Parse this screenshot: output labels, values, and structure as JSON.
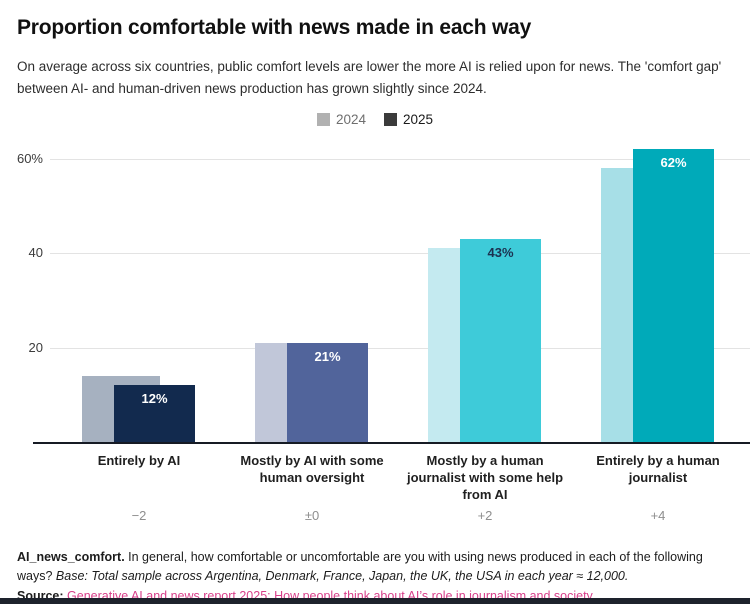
{
  "page": {
    "title": "Proportion comfortable with news made in each way",
    "subtitle": "On average across six countries, public comfort levels are lower the more AI is relied upon for news. The 'comfort gap' between AI- and human-driven news production has grown slightly since 2024."
  },
  "legend": {
    "items": [
      {
        "label": "2024",
        "swatch_color": "#b1b1b1",
        "text_color": "#6f6f6f"
      },
      {
        "label": "2025",
        "swatch_color": "#3b3b3b",
        "text_color": "#1a1a1a"
      }
    ]
  },
  "chart_data": {
    "type": "bar",
    "title": "Proportion comfortable with news made in each way",
    "categories": [
      "Entirely by AI",
      "Mostly by AI with some human oversight",
      "Mostly by a human journalist with some help from AI",
      "Entirely by a human journalist"
    ],
    "series": [
      {
        "name": "2024",
        "values": [
          14,
          21,
          41,
          58
        ],
        "colors": [
          "#a6b1c0",
          "#c1c7d9",
          "#c4eaf0",
          "#a7dfe7"
        ]
      },
      {
        "name": "2025",
        "values": [
          12,
          21,
          43,
          62
        ],
        "colors": [
          "#122a4e",
          "#51649b",
          "#3ecbd9",
          "#00aab9"
        ],
        "value_labels": [
          "12%",
          "21%",
          "43%",
          "62%"
        ],
        "value_label_colors": [
          "#ffffff",
          "#ffffff",
          "#1c3150",
          "#ffffff"
        ]
      }
    ],
    "change_labels": [
      "−2",
      "±0",
      "+2",
      "+4"
    ],
    "y_ticks": [
      {
        "value": 20,
        "label": "20"
      },
      {
        "value": 40,
        "label": "40"
      },
      {
        "value": 60,
        "label": "60%"
      }
    ],
    "ylim": [
      0,
      66
    ],
    "grid": true,
    "legend_position": "top-center",
    "xlabel": "",
    "ylabel": ""
  },
  "footnote": {
    "variable_bold": "AI_news_comfort.",
    "question": " In general, how comfortable or uncomfortable are you with using news produced in each of the following ways? ",
    "base_italic": "Base: Total sample across Argentina, Denmark, France, Japan, the UK, the USA in each year ≈ 12,000.",
    "source_label": "Source:",
    "source_link_text": "Generative AI and news report 2025: How people think about AI’s role in journalism and society",
    "source_link_color": "#d8418b"
  }
}
